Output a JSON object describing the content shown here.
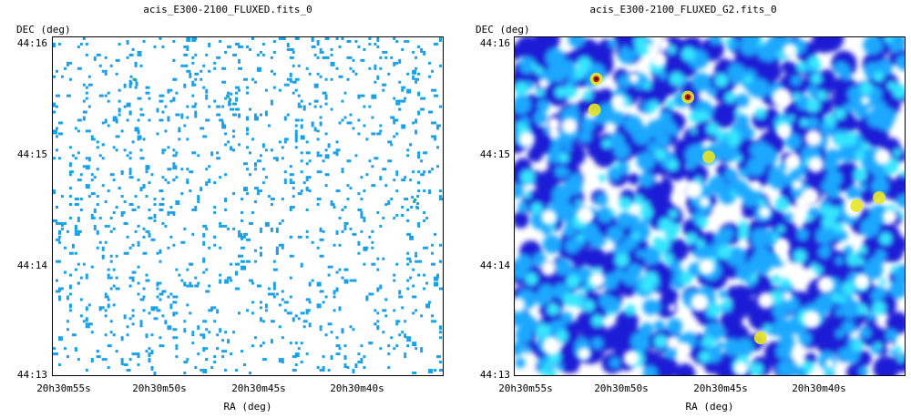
{
  "panels": [
    {
      "title": "acis_E300-2100_FLUXED.fits_0",
      "y_axis_label": "DEC (deg)",
      "x_axis_label": "RA (deg)",
      "y_ticks": [
        "44:16",
        "44:15",
        "44:14",
        "44:13"
      ],
      "x_ticks": [
        "20h30m55s",
        "20h30m50s",
        "20h30m45s",
        "20h30m40s"
      ],
      "image_style": "sparse pixel counts on white background",
      "colors": {
        "pixel": "#1aa0e6",
        "hot_pixel": "#1fb37a"
      }
    },
    {
      "title": "acis_E300-2100_FLUXED_G2.fits_0",
      "y_axis_label": "DEC (deg)",
      "x_axis_label": "RA (deg)",
      "y_ticks": [
        "44:16",
        "44:15",
        "44:14",
        "44:13"
      ],
      "x_ticks": [
        "20h30m55s",
        "20h30m50s",
        "20h30m45s",
        "20h30m40s"
      ],
      "image_style": "gaussian-smoothed intensity, blue/cyan with bright yellow/red point sources",
      "colors": {
        "low": "#1b1fd6",
        "mid": "#1ba8ff",
        "high": "#35e6ff",
        "source": "#e6e628",
        "peak": "#c81e1e"
      }
    }
  ]
}
